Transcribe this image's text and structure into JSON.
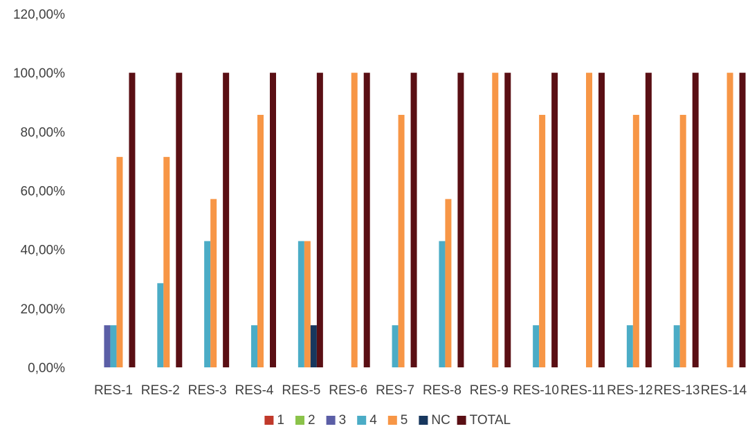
{
  "chart_data": {
    "type": "bar",
    "categories": [
      "RES-1",
      "RES-2",
      "RES-3",
      "RES-4",
      "RES-5",
      "RES-6",
      "RES-7",
      "RES-8",
      "RES-9",
      "RES-10",
      "RES-11",
      "RES-12",
      "RES-13",
      "RES-14"
    ],
    "series": [
      {
        "name": "1",
        "color": "#c0392b",
        "values": [
          0,
          0,
          0,
          0,
          0,
          0,
          0,
          0,
          0,
          0,
          0,
          0,
          0,
          0
        ]
      },
      {
        "name": "2",
        "color": "#8bc34a",
        "values": [
          0,
          0,
          0,
          0,
          0,
          0,
          0,
          0,
          0,
          0,
          0,
          0,
          0,
          0
        ]
      },
      {
        "name": "3",
        "color": "#5b5ea6",
        "values": [
          14.29,
          0,
          0,
          0,
          0,
          0,
          0,
          0,
          0,
          0,
          0,
          0,
          0,
          0
        ]
      },
      {
        "name": "4",
        "color": "#4bacc6",
        "values": [
          14.29,
          28.57,
          42.86,
          14.29,
          42.86,
          0,
          14.29,
          42.86,
          0,
          14.29,
          0,
          14.29,
          14.29,
          0
        ]
      },
      {
        "name": "5",
        "color": "#f79646",
        "values": [
          71.43,
          71.43,
          57.14,
          85.71,
          42.86,
          100,
          85.71,
          57.14,
          100,
          85.71,
          100,
          85.71,
          85.71,
          100
        ]
      },
      {
        "name": "NC",
        "color": "#17375e",
        "values": [
          0,
          0,
          0,
          0,
          14.29,
          0,
          0,
          0,
          0,
          0,
          0,
          0,
          0,
          0
        ]
      },
      {
        "name": "TOTAL",
        "color": "#5a0f14",
        "values": [
          100,
          100,
          100,
          100,
          100,
          100,
          100,
          100,
          100,
          100,
          100,
          100,
          100,
          100
        ]
      }
    ],
    "y_ticks": [
      "0,00%",
      "20,00%",
      "40,00%",
      "60,00%",
      "80,00%",
      "100,00%",
      "120,00%"
    ],
    "ylim": [
      0,
      120
    ],
    "grid": false,
    "legend_position": "bottom",
    "title": "",
    "xlabel": "",
    "ylabel": ""
  }
}
